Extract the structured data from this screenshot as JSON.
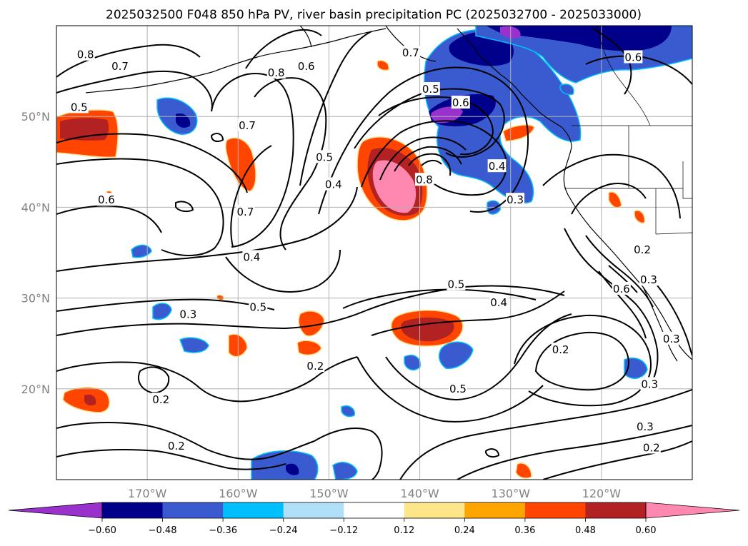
{
  "title": "2025032500 F048 850 hPa PV, river basin precipitation PC (2025032700 - 2025033000)",
  "map": {
    "lon_range": [
      -180,
      -110
    ],
    "lat_range": [
      10,
      60
    ],
    "lat_ticks": [
      {
        "value": 50,
        "label": "50°N"
      },
      {
        "value": 40,
        "label": "40°N"
      },
      {
        "value": 30,
        "label": "30°N"
      },
      {
        "value": 20,
        "label": "20°N"
      }
    ],
    "lon_ticks": [
      {
        "value": -170,
        "label": "170°W"
      },
      {
        "value": -160,
        "label": "160°W"
      },
      {
        "value": -150,
        "label": "150°W"
      },
      {
        "value": -140,
        "label": "140°W"
      },
      {
        "value": -130,
        "label": "130°W"
      },
      {
        "value": -120,
        "label": "120°W"
      }
    ],
    "gridlines": true,
    "contour_labels": [
      {
        "text": "0.8",
        "lon": -176.8,
        "lat": 56.8
      },
      {
        "text": "0.7",
        "lon": -173,
        "lat": 55.5
      },
      {
        "text": "0.5",
        "lon": -177.5,
        "lat": 51
      },
      {
        "text": "0.7",
        "lon": -159,
        "lat": 49
      },
      {
        "text": "0.8",
        "lon": -155.8,
        "lat": 54.8
      },
      {
        "text": "0.6",
        "lon": -152.5,
        "lat": 55.5
      },
      {
        "text": "0.5",
        "lon": -150.5,
        "lat": 45.5
      },
      {
        "text": "0.4",
        "lon": -149.5,
        "lat": 42.5
      },
      {
        "text": "0.6",
        "lon": -174.5,
        "lat": 40.8
      },
      {
        "text": "0.7",
        "lon": -159.2,
        "lat": 39.5
      },
      {
        "text": "0.5",
        "lon": -138.8,
        "lat": 53
      },
      {
        "text": "0.6",
        "lon": -135.5,
        "lat": 51.5
      },
      {
        "text": "0.8",
        "lon": -139.5,
        "lat": 43
      },
      {
        "text": "0.7",
        "lon": -141,
        "lat": 57
      },
      {
        "text": "0.4",
        "lon": -131.5,
        "lat": 44.5
      },
      {
        "text": "0.3",
        "lon": -129.5,
        "lat": 40.8
      },
      {
        "text": "0.6",
        "lon": -116.5,
        "lat": 56.5
      },
      {
        "text": "0.4",
        "lon": -158.5,
        "lat": 34.5
      },
      {
        "text": "0.5",
        "lon": -157.8,
        "lat": 29
      },
      {
        "text": "0.3",
        "lon": -165.5,
        "lat": 28.2
      },
      {
        "text": "0.5",
        "lon": -136,
        "lat": 31.5
      },
      {
        "text": "0.4",
        "lon": -131.3,
        "lat": 29.5
      },
      {
        "text": "0.2",
        "lon": -151.5,
        "lat": 22.5
      },
      {
        "text": "0.2",
        "lon": -168.5,
        "lat": 18.8
      },
      {
        "text": "0.2",
        "lon": -166.8,
        "lat": 13.7
      },
      {
        "text": "0.5",
        "lon": -135.8,
        "lat": 20
      },
      {
        "text": "0.2",
        "lon": -124.5,
        "lat": 24.3
      },
      {
        "text": "0.3",
        "lon": -114.7,
        "lat": 20.5
      },
      {
        "text": "0.3",
        "lon": -115.2,
        "lat": 15.8
      },
      {
        "text": "0.2",
        "lon": -114.5,
        "lat": 13.5
      },
      {
        "text": "0.2",
        "lon": -115.5,
        "lat": 35.3
      },
      {
        "text": "0.3",
        "lon": -114.8,
        "lat": 32
      },
      {
        "text": "0.6",
        "lon": -117.8,
        "lat": 31
      },
      {
        "text": "0.3",
        "lon": -112.3,
        "lat": 25.5
      }
    ]
  },
  "colorbar": {
    "tick_labels": [
      "−0.60",
      "−0.48",
      "−0.36",
      "−0.24",
      "−0.12",
      "0.12",
      "0.24",
      "0.36",
      "0.48",
      "0.60"
    ],
    "colors": [
      "#9932cc",
      "#00008b",
      "#3a5bd0",
      "#00bfff",
      "#b0e0f8",
      "#ffffff",
      "#fde68a",
      "#ffa500",
      "#ff4500",
      "#b22222",
      "#ff88b0"
    ]
  },
  "colors": {
    "coast": "#000000",
    "contour": "#000000",
    "grid": "#b0b0b0"
  }
}
